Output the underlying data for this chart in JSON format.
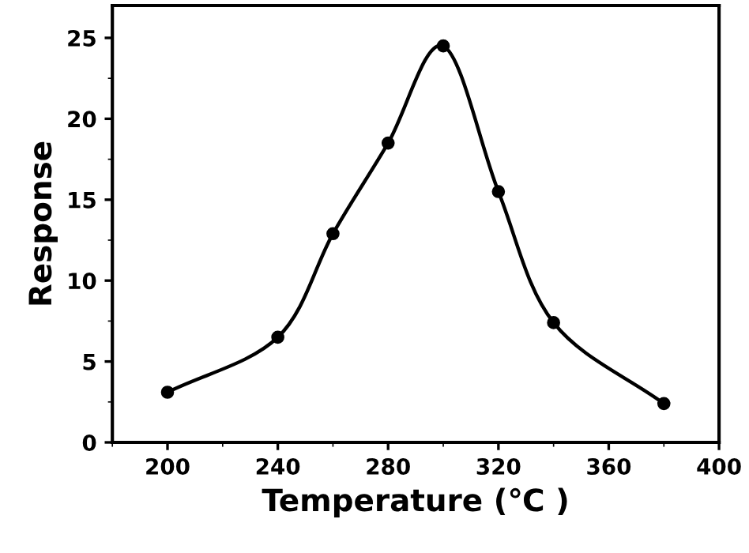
{
  "chart_data": {
    "type": "line",
    "xlabel": "Temperature (℃ )",
    "ylabel": "Response",
    "x": [
      200,
      240,
      260,
      280,
      300,
      320,
      340,
      380
    ],
    "values": [
      3.1,
      6.5,
      12.9,
      18.5,
      24.5,
      15.5,
      7.4,
      2.4
    ],
    "color": "#000000",
    "marker": "circle",
    "line_style": "solid",
    "xlim": [
      180,
      400
    ],
    "xticks": [
      200,
      240,
      280,
      320,
      360,
      400
    ],
    "ylim": [
      0,
      27
    ],
    "yticks": [
      0,
      5,
      10,
      15,
      20,
      25
    ],
    "grid": false
  }
}
